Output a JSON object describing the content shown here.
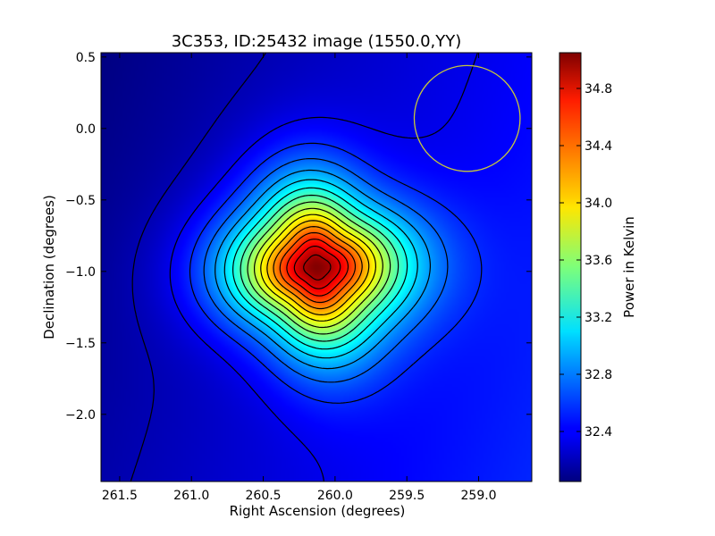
{
  "chart_data": {
    "type": "heatmap",
    "title": "3C353, ID:25432 image (1550.0,YY)",
    "xlabel": "Right Ascension (degrees)",
    "ylabel": "Declination (degrees)",
    "xlim": [
      261.63,
      258.63
    ],
    "ylim": [
      -2.47,
      0.53
    ],
    "xticks": [
      "261.5",
      "261.0",
      "260.5",
      "260.0",
      "259.5",
      "259.0"
    ],
    "yticks": [
      "0.5",
      "0.0",
      "−0.5",
      "−1.0",
      "−1.5",
      "−2.0"
    ],
    "colorbar": {
      "label": "Power in Kelvin",
      "range": [
        32.05,
        35.05
      ],
      "ticks": [
        "32.4",
        "32.8",
        "33.2",
        "33.6",
        "34.0",
        "34.4",
        "34.8"
      ]
    },
    "colormap": "jet",
    "peak": {
      "ra": 260.13,
      "dec": -0.97,
      "value": 35.05
    },
    "background_level": 32.3,
    "contour_color": "#000000",
    "beam_circle": {
      "ra": 259.08,
      "dec": 0.07,
      "radius_deg": 0.37,
      "color": "#c8c83a"
    }
  }
}
